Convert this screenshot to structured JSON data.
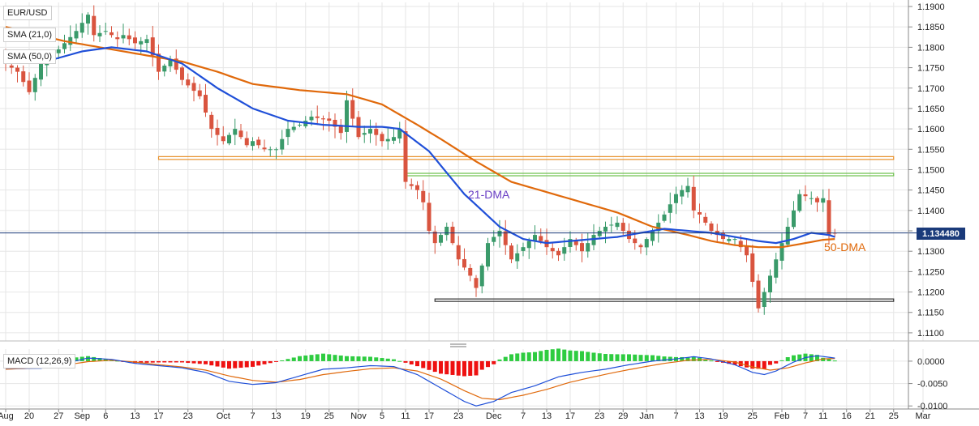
{
  "chart_data": [
    {
      "type": "candlestick",
      "symbol": "EUR/USD",
      "current_price_label": "1.134480",
      "current_price": 1.13448,
      "y_axis": {
        "range": [
          1.108,
          1.191
        ],
        "ticks": [
          "1.1900",
          "1.1850",
          "1.1800",
          "1.1750",
          "1.1700",
          "1.1650",
          "1.1600",
          "1.1550",
          "1.1500",
          "1.1450",
          "1.1400",
          "1.1350",
          "1.1300",
          "1.1250",
          "1.1200",
          "1.1150",
          "1.1100"
        ]
      },
      "x_axis": {
        "tick_labels": [
          "Aug",
          "20",
          "27",
          "Sep",
          "6",
          "13",
          "17",
          "23",
          "Oct",
          "7",
          "13",
          "19",
          "25",
          "Nov",
          "5",
          "11",
          "17",
          "23",
          "Dec",
          "7",
          "13",
          "17",
          "23",
          "29",
          "Jan",
          "7",
          "13",
          "19",
          "25",
          "Feb",
          "7",
          "11",
          "16",
          "21",
          "25",
          "Mar"
        ],
        "tick_positions": [
          0,
          4,
          9,
          13,
          17,
          22,
          26,
          31,
          37,
          42,
          46,
          51,
          55,
          60,
          64,
          68,
          72,
          77,
          83,
          88,
          92,
          96,
          101,
          105,
          109,
          114,
          118,
          122,
          127,
          132,
          136,
          139,
          143,
          147,
          151,
          156
        ]
      },
      "sessions": 156,
      "indicators": [
        {
          "name": "SMA (21,0)",
          "label": "21-DMA",
          "color": "#1f4fd8"
        },
        {
          "name": "SMA (50,0)",
          "label": "50-DMA",
          "color": "#e0690b"
        }
      ],
      "horizontal_bands": [
        {
          "from": 1.1525,
          "to": 1.1532,
          "color": "#e8902a",
          "start_session": 26,
          "end_session": 151
        },
        {
          "from": 1.1486,
          "to": 1.1491,
          "color": "#6cbf4a",
          "start_session": 68,
          "end_session": 151
        },
        {
          "from": 1.1177,
          "to": 1.1183,
          "color": "#333333",
          "start_session": 73,
          "end_session": 151
        }
      ],
      "anchor_closes": [
        [
          0,
          1.176
        ],
        [
          2,
          1.174
        ],
        [
          4,
          1.169
        ],
        [
          6,
          1.176
        ],
        [
          8,
          1.178
        ],
        [
          10,
          1.181
        ],
        [
          12,
          1.184
        ],
        [
          14,
          1.188
        ],
        [
          15,
          1.183
        ],
        [
          17,
          1.184
        ],
        [
          19,
          1.182
        ],
        [
          20,
          1.183
        ],
        [
          22,
          1.181
        ],
        [
          24,
          1.182
        ],
        [
          26,
          1.174
        ],
        [
          28,
          1.177
        ],
        [
          30,
          1.172
        ],
        [
          33,
          1.168
        ],
        [
          35,
          1.16
        ],
        [
          37,
          1.157
        ],
        [
          39,
          1.16
        ],
        [
          41,
          1.156
        ],
        [
          42,
          1.157
        ],
        [
          44,
          1.155
        ],
        [
          46,
          1.155
        ],
        [
          48,
          1.16
        ],
        [
          50,
          1.161
        ],
        [
          52,
          1.163
        ],
        [
          55,
          1.162
        ],
        [
          57,
          1.159
        ],
        [
          58,
          1.167
        ],
        [
          60,
          1.158
        ],
        [
          62,
          1.16
        ],
        [
          64,
          1.157
        ],
        [
          66,
          1.158
        ],
        [
          67,
          1.16
        ],
        [
          68,
          1.147
        ],
        [
          70,
          1.145
        ],
        [
          71,
          1.142
        ],
        [
          72,
          1.135
        ],
        [
          73,
          1.132
        ],
        [
          75,
          1.136
        ],
        [
          77,
          1.128
        ],
        [
          79,
          1.124
        ],
        [
          80,
          1.121
        ],
        [
          82,
          1.132
        ],
        [
          84,
          1.135
        ],
        [
          86,
          1.128
        ],
        [
          88,
          1.131
        ],
        [
          90,
          1.134
        ],
        [
          92,
          1.131
        ],
        [
          94,
          1.129
        ],
        [
          96,
          1.133
        ],
        [
          98,
          1.13
        ],
        [
          100,
          1.134
        ],
        [
          102,
          1.136
        ],
        [
          104,
          1.137
        ],
        [
          106,
          1.133
        ],
        [
          108,
          1.131
        ],
        [
          110,
          1.135
        ],
        [
          112,
          1.139
        ],
        [
          114,
          1.144
        ],
        [
          116,
          1.146
        ],
        [
          117,
          1.14
        ],
        [
          118,
          1.139
        ],
        [
          120,
          1.135
        ],
        [
          122,
          1.133
        ],
        [
          124,
          1.133
        ],
        [
          126,
          1.129
        ],
        [
          128,
          1.116
        ],
        [
          130,
          1.124
        ],
        [
          132,
          1.132
        ],
        [
          134,
          1.14
        ],
        [
          135,
          1.144
        ],
        [
          137,
          1.143
        ],
        [
          138,
          1.142
        ],
        [
          139,
          1.143
        ],
        [
          140,
          1.134
        ],
        [
          141,
          1.1345
        ]
      ],
      "sma21_anchors": [
        [
          0,
          1.1775
        ],
        [
          8,
          1.177
        ],
        [
          13,
          1.179
        ],
        [
          18,
          1.18
        ],
        [
          24,
          1.179
        ],
        [
          30,
          1.176
        ],
        [
          36,
          1.17
        ],
        [
          42,
          1.165
        ],
        [
          48,
          1.162
        ],
        [
          54,
          1.161
        ],
        [
          60,
          1.1605
        ],
        [
          64,
          1.1605
        ],
        [
          67,
          1.16
        ],
        [
          72,
          1.1545
        ],
        [
          78,
          1.144
        ],
        [
          84,
          1.136
        ],
        [
          88,
          1.133
        ],
        [
          92,
          1.132
        ],
        [
          96,
          1.1325
        ],
        [
          100,
          1.133
        ],
        [
          104,
          1.1335
        ],
        [
          108,
          1.1345
        ],
        [
          112,
          1.1355
        ],
        [
          116,
          1.135
        ],
        [
          120,
          1.1345
        ],
        [
          124,
          1.1335
        ],
        [
          128,
          1.1325
        ],
        [
          131,
          1.132
        ],
        [
          134,
          1.133
        ],
        [
          137,
          1.1345
        ],
        [
          140,
          1.134
        ],
        [
          141,
          1.1335
        ]
      ],
      "sma50_anchors": [
        [
          0,
          1.185
        ],
        [
          10,
          1.1815
        ],
        [
          20,
          1.179
        ],
        [
          30,
          1.1765
        ],
        [
          36,
          1.174
        ],
        [
          42,
          1.171
        ],
        [
          50,
          1.1695
        ],
        [
          58,
          1.1685
        ],
        [
          64,
          1.166
        ],
        [
          70,
          1.161
        ],
        [
          74,
          1.1575
        ],
        [
          80,
          1.152
        ],
        [
          86,
          1.147
        ],
        [
          92,
          1.1445
        ],
        [
          98,
          1.142
        ],
        [
          104,
          1.1395
        ],
        [
          110,
          1.136
        ],
        [
          116,
          1.134
        ],
        [
          120,
          1.1325
        ],
        [
          124,
          1.1315
        ],
        [
          128,
          1.131
        ],
        [
          132,
          1.131
        ],
        [
          136,
          1.132
        ],
        [
          139,
          1.1328
        ],
        [
          141,
          1.133
        ]
      ]
    },
    {
      "type": "macd",
      "label": "MACD (12,26,9)",
      "y_axis": {
        "range": [
          -0.0105,
          0.0027
        ],
        "ticks": [
          "0.0000",
          "-0.0050",
          "-0.0100"
        ]
      },
      "macd_anchors": [
        [
          0,
          -0.0016
        ],
        [
          6,
          -0.0016
        ],
        [
          10,
          -0.0005
        ],
        [
          14,
          0.0007
        ],
        [
          18,
          0.0004
        ],
        [
          22,
          -0.0005
        ],
        [
          26,
          -0.001
        ],
        [
          30,
          -0.0015
        ],
        [
          34,
          -0.0025
        ],
        [
          38,
          -0.0045
        ],
        [
          42,
          -0.0052
        ],
        [
          46,
          -0.0048
        ],
        [
          50,
          -0.0033
        ],
        [
          54,
          -0.0018
        ],
        [
          58,
          -0.0015
        ],
        [
          62,
          -0.001
        ],
        [
          66,
          -0.0012
        ],
        [
          70,
          -0.003
        ],
        [
          74,
          -0.006
        ],
        [
          78,
          -0.009
        ],
        [
          80,
          -0.01
        ],
        [
          83,
          -0.009
        ],
        [
          86,
          -0.007
        ],
        [
          90,
          -0.0055
        ],
        [
          94,
          -0.0035
        ],
        [
          98,
          -0.0025
        ],
        [
          102,
          -0.0018
        ],
        [
          106,
          -0.0008
        ],
        [
          110,
          0.0
        ],
        [
          114,
          0.0005
        ],
        [
          117,
          0.001
        ],
        [
          120,
          0.0005
        ],
        [
          124,
          -0.0008
        ],
        [
          127,
          -0.0025
        ],
        [
          129,
          -0.003
        ],
        [
          131,
          -0.0022
        ],
        [
          134,
          -0.0002
        ],
        [
          136,
          0.0008
        ],
        [
          138,
          0.0012
        ],
        [
          141,
          0.0007
        ]
      ],
      "signal_anchors": [
        [
          0,
          -0.0018
        ],
        [
          6,
          -0.0015
        ],
        [
          10,
          -0.0009
        ],
        [
          14,
          -0.0001
        ],
        [
          18,
          0.0002
        ],
        [
          22,
          -0.0002
        ],
        [
          26,
          -0.0008
        ],
        [
          30,
          -0.0013
        ],
        [
          34,
          -0.002
        ],
        [
          38,
          -0.0033
        ],
        [
          42,
          -0.0043
        ],
        [
          46,
          -0.0047
        ],
        [
          50,
          -0.0041
        ],
        [
          54,
          -0.003
        ],
        [
          58,
          -0.0023
        ],
        [
          62,
          -0.0017
        ],
        [
          66,
          -0.0015
        ],
        [
          70,
          -0.0022
        ],
        [
          74,
          -0.004
        ],
        [
          78,
          -0.0066
        ],
        [
          81,
          -0.0083
        ],
        [
          84,
          -0.0086
        ],
        [
          88,
          -0.0076
        ],
        [
          92,
          -0.0063
        ],
        [
          96,
          -0.0047
        ],
        [
          100,
          -0.0035
        ],
        [
          104,
          -0.0024
        ],
        [
          108,
          -0.0014
        ],
        [
          112,
          -0.0005
        ],
        [
          116,
          0.0002
        ],
        [
          120,
          0.0004
        ],
        [
          124,
          -0.0002
        ],
        [
          127,
          -0.0013
        ],
        [
          130,
          -0.002
        ],
        [
          133,
          -0.0015
        ],
        [
          136,
          -0.0004
        ],
        [
          139,
          0.0005
        ],
        [
          141,
          0.0006
        ]
      ],
      "colors": {
        "macd": "#1f4fd8",
        "signal": "#e0690b",
        "hist_pos": "#2ecc40",
        "hist_neg": "#ee1111"
      }
    }
  ],
  "colors": {
    "bull": "#3a9a6a",
    "bear": "#d9543f",
    "price_line": "#1a3a7a",
    "grid": "#e6e6e6"
  }
}
